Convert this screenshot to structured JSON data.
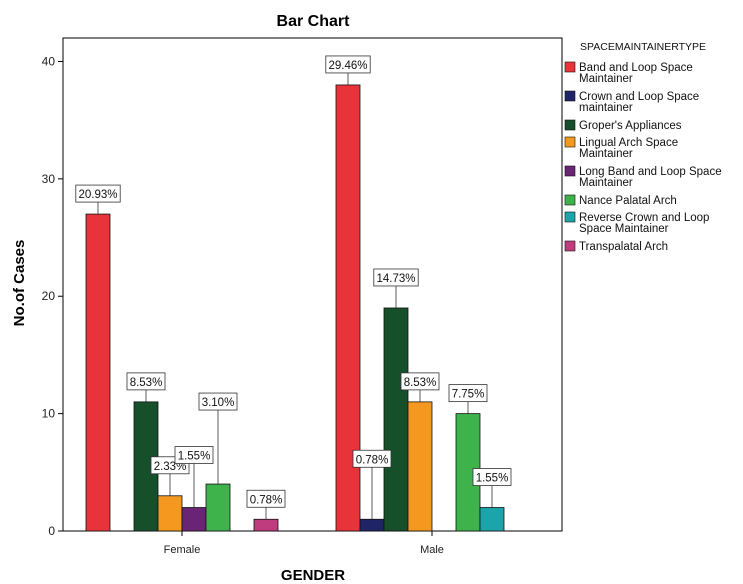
{
  "chart_data": {
    "type": "bar",
    "title": "Bar Chart",
    "xlabel": "GENDER",
    "ylabel": "No.of Cases",
    "categories": [
      "Female",
      "Male"
    ],
    "ylim": [
      0,
      42
    ],
    "yticks": [
      0,
      10,
      20,
      30,
      40
    ],
    "grid": false,
    "legend_title": "SPACEMAINTAINERTYPE",
    "legend_position": "right",
    "series": [
      {
        "name": [
          "Band and Loop Space",
          "Maintainer"
        ],
        "color": "#e8333b",
        "values": [
          27,
          38
        ],
        "labels": [
          "20.93%",
          "29.46%"
        ]
      },
      {
        "name": [
          "Crown and Loop Space",
          "maintainer"
        ],
        "color": "#1f2466",
        "values": [
          0,
          1
        ],
        "labels": [
          "",
          "0.78%"
        ]
      },
      {
        "name": [
          "Groper's Appliances"
        ],
        "color": "#16502a",
        "values": [
          11,
          19
        ],
        "labels": [
          "8.53%",
          "14.73%"
        ]
      },
      {
        "name": [
          "Lingual Arch Space",
          "Maintainer"
        ],
        "color": "#f5981f",
        "values": [
          3,
          11
        ],
        "labels": [
          "2.33%",
          "8.53%"
        ]
      },
      {
        "name": [
          "Long Band and Loop Space",
          "Maintainer"
        ],
        "color": "#6a2475",
        "values": [
          2,
          0
        ],
        "labels": [
          "1.55%",
          ""
        ]
      },
      {
        "name": [
          "Nance Palatal Arch"
        ],
        "color": "#3eb34c",
        "values": [
          4,
          10
        ],
        "labels": [
          "3.10%",
          "7.75%"
        ]
      },
      {
        "name": [
          "Reverse Crown and Loop",
          "Space Maintainer"
        ],
        "color": "#1ba5aa",
        "values": [
          0,
          2
        ],
        "labels": [
          "",
          "1.55%"
        ]
      },
      {
        "name": [
          "Transpalatal Arch"
        ],
        "color": "#bf3c7e",
        "values": [
          1,
          0
        ],
        "labels": [
          "0.78%",
          ""
        ]
      }
    ]
  }
}
